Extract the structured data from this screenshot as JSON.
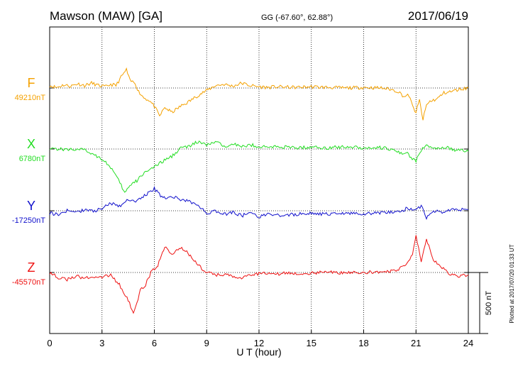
{
  "header": {
    "station": "Mawson (MAW)  [GA]",
    "coords": "GG (-67.60°,  62.88°)",
    "date": "2017/06/19"
  },
  "footer": {
    "plotted": "Plotted at 2017/07/20 01:33 UT"
  },
  "chart_data": {
    "type": "line",
    "xlabel": "U T (hour)",
    "xlim": [
      0,
      24
    ],
    "xticks": [
      "0",
      "3",
      "6",
      "9",
      "12",
      "15",
      "18",
      "21",
      "24"
    ],
    "grid": true,
    "scale_bar": {
      "label": "500 nT",
      "value": 500
    },
    "series": [
      {
        "name": "F",
        "baseline_label": "49210nT",
        "color": "#f4a100",
        "points": [
          [
            0,
            20
          ],
          [
            0.4,
            5
          ],
          [
            0.8,
            25
          ],
          [
            1.2,
            15
          ],
          [
            1.6,
            35
          ],
          [
            2.0,
            20
          ],
          [
            2.4,
            40
          ],
          [
            2.8,
            20
          ],
          [
            3.2,
            10
          ],
          [
            3.5,
            30
          ],
          [
            3.8,
            20
          ],
          [
            4.1,
            90
          ],
          [
            4.4,
            150
          ],
          [
            4.6,
            60
          ],
          [
            4.9,
            40
          ],
          [
            5.1,
            -30
          ],
          [
            5.4,
            -80
          ],
          [
            5.7,
            -100
          ],
          [
            6.0,
            -150
          ],
          [
            6.3,
            -230
          ],
          [
            6.6,
            -160
          ],
          [
            7.0,
            -200
          ],
          [
            7.5,
            -150
          ],
          [
            8.0,
            -110
          ],
          [
            8.5,
            -60
          ],
          [
            9.0,
            -20
          ],
          [
            9.5,
            20
          ],
          [
            10.0,
            30
          ],
          [
            10.5,
            15
          ],
          [
            11.0,
            40
          ],
          [
            11.5,
            20
          ],
          [
            12.0,
            10
          ],
          [
            12.5,
            5
          ],
          [
            13.0,
            10
          ],
          [
            14.0,
            5
          ],
          [
            15.0,
            10
          ],
          [
            16.0,
            5
          ],
          [
            17.0,
            0
          ],
          [
            18.0,
            5
          ],
          [
            19.0,
            0
          ],
          [
            19.5,
            -10
          ],
          [
            20.0,
            -30
          ],
          [
            20.3,
            -70
          ],
          [
            20.6,
            -60
          ],
          [
            20.8,
            -150
          ],
          [
            21.0,
            -200
          ],
          [
            21.2,
            -100
          ],
          [
            21.4,
            -260
          ],
          [
            21.6,
            -140
          ],
          [
            21.8,
            -110
          ],
          [
            22.2,
            -90
          ],
          [
            22.6,
            -40
          ],
          [
            23.0,
            -30
          ],
          [
            23.5,
            -10
          ],
          [
            24.0,
            0
          ]
        ]
      },
      {
        "name": "X",
        "baseline_label": "6780nT",
        "color": "#22dd22",
        "points": [
          [
            0,
            10
          ],
          [
            0.5,
            0
          ],
          [
            1.0,
            -5
          ],
          [
            1.5,
            0
          ],
          [
            2.0,
            -10
          ],
          [
            2.5,
            -40
          ],
          [
            3.0,
            -80
          ],
          [
            3.5,
            -150
          ],
          [
            3.8,
            -220
          ],
          [
            4.1,
            -300
          ],
          [
            4.3,
            -360
          ],
          [
            4.6,
            -300
          ],
          [
            5.0,
            -260
          ],
          [
            5.5,
            -180
          ],
          [
            6.0,
            -150
          ],
          [
            6.5,
            -100
          ],
          [
            7.0,
            -60
          ],
          [
            7.5,
            10
          ],
          [
            8.0,
            20
          ],
          [
            8.5,
            60
          ],
          [
            9.0,
            30
          ],
          [
            9.5,
            60
          ],
          [
            10.0,
            20
          ],
          [
            10.5,
            50
          ],
          [
            11.0,
            15
          ],
          [
            11.5,
            35
          ],
          [
            12.0,
            20
          ],
          [
            12.5,
            15
          ],
          [
            13.0,
            20
          ],
          [
            14.0,
            10
          ],
          [
            15.0,
            15
          ],
          [
            16.0,
            10
          ],
          [
            17.0,
            20
          ],
          [
            18.0,
            10
          ],
          [
            19.0,
            10
          ],
          [
            19.5,
            0
          ],
          [
            20.0,
            -30
          ],
          [
            20.5,
            -40
          ],
          [
            21.0,
            -100
          ],
          [
            21.3,
            -10
          ],
          [
            21.6,
            40
          ],
          [
            21.9,
            10
          ],
          [
            22.3,
            0
          ],
          [
            22.8,
            10
          ],
          [
            23.3,
            -10
          ],
          [
            24.0,
            -20
          ]
        ]
      },
      {
        "name": "Y",
        "baseline_label": "-17250nT",
        "color": "#1010cc",
        "points": [
          [
            0,
            -20
          ],
          [
            0.5,
            -30
          ],
          [
            1.0,
            0
          ],
          [
            1.5,
            -15
          ],
          [
            2.0,
            10
          ],
          [
            2.5,
            -5
          ],
          [
            3.0,
            20
          ],
          [
            3.5,
            60
          ],
          [
            4.0,
            40
          ],
          [
            4.5,
            90
          ],
          [
            5.0,
            80
          ],
          [
            5.5,
            130
          ],
          [
            6.0,
            180
          ],
          [
            6.5,
            100
          ],
          [
            7.0,
            120
          ],
          [
            7.5,
            90
          ],
          [
            8.0,
            80
          ],
          [
            8.5,
            40
          ],
          [
            9.0,
            -20
          ],
          [
            9.5,
            0
          ],
          [
            10.0,
            -30
          ],
          [
            10.5,
            -10
          ],
          [
            11.0,
            -40
          ],
          [
            11.5,
            -20
          ],
          [
            12.0,
            -50
          ],
          [
            12.5,
            -30
          ],
          [
            13.0,
            -40
          ],
          [
            14.0,
            -30
          ],
          [
            15.0,
            -20
          ],
          [
            16.0,
            -30
          ],
          [
            17.0,
            -20
          ],
          [
            18.0,
            -25
          ],
          [
            19.0,
            -15
          ],
          [
            20.0,
            -10
          ],
          [
            20.5,
            20
          ],
          [
            21.0,
            0
          ],
          [
            21.3,
            40
          ],
          [
            21.6,
            -60
          ],
          [
            22.0,
            0
          ],
          [
            22.5,
            -10
          ],
          [
            23.0,
            10
          ],
          [
            24.0,
            10
          ]
        ]
      },
      {
        "name": "Z",
        "baseline_label": "-45570nT",
        "color": "#ee1111",
        "points": [
          [
            0,
            0
          ],
          [
            0.5,
            -40
          ],
          [
            1.0,
            -60
          ],
          [
            1.5,
            -30
          ],
          [
            2.0,
            -50
          ],
          [
            2.5,
            -30
          ],
          [
            3.0,
            -40
          ],
          [
            3.5,
            -20
          ],
          [
            4.0,
            -100
          ],
          [
            4.5,
            -230
          ],
          [
            4.8,
            -330
          ],
          [
            5.2,
            -150
          ],
          [
            5.5,
            -100
          ],
          [
            5.8,
            0
          ],
          [
            6.2,
            60
          ],
          [
            6.6,
            220
          ],
          [
            7.0,
            150
          ],
          [
            7.5,
            200
          ],
          [
            8.0,
            150
          ],
          [
            8.5,
            60
          ],
          [
            9.0,
            0
          ],
          [
            9.5,
            -20
          ],
          [
            10.0,
            -20
          ],
          [
            11.0,
            -40
          ],
          [
            12.0,
            -10
          ],
          [
            13.0,
            -10
          ],
          [
            14.0,
            -5
          ],
          [
            15.0,
            -5
          ],
          [
            16.0,
            0
          ],
          [
            17.0,
            0
          ],
          [
            18.0,
            0
          ],
          [
            19.0,
            5
          ],
          [
            20.0,
            20
          ],
          [
            20.5,
            80
          ],
          [
            20.8,
            150
          ],
          [
            21.0,
            300
          ],
          [
            21.3,
            100
          ],
          [
            21.6,
            280
          ],
          [
            22.0,
            100
          ],
          [
            22.5,
            40
          ],
          [
            23.0,
            -20
          ],
          [
            23.5,
            -30
          ],
          [
            24.0,
            -20
          ]
        ]
      }
    ]
  }
}
